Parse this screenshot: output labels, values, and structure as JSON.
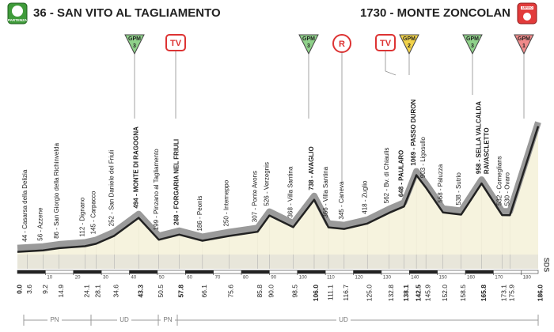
{
  "chart_data": {
    "type": "area",
    "x": [
      {
        "value": 0,
        "label": "0.0"
      },
      3.6,
      9.2,
      14.9,
      24.1,
      28.1,
      34.6,
      43.3,
      50.5,
      57.8,
      66.1,
      75.6,
      85.8,
      {
        "value": 90,
        "label": "90.0"
      },
      98.5,
      {
        "value": 106,
        "label": "106.0"
      },
      111.1,
      116.7,
      {
        "value": 125,
        "label": "125.0"
      },
      132.8,
      138.1,
      142.5,
      145.9,
      {
        "value": 152,
        "label": "152.0"
      },
      158.5,
      165.8,
      173.1,
      175.9,
      {
        "value": 186,
        "label": "186.0"
      }
    ],
    "values": [
      36,
      44,
      56,
      86,
      112,
      145,
      252,
      494,
      199,
      268,
      186,
      250,
      307,
      526,
      368,
      738,
      366,
      345,
      418,
      562,
      648,
      1069,
      903,
      568,
      538,
      958,
      532,
      530,
      1730
    ],
    "value_labels": [
      "36 - SAN VITO AL TAGLIAMENTO",
      "44 - Casarsa della Delizia",
      "56 - Azzene",
      "86 - San Giorgio della Richinvelda",
      "112 - Dignano",
      "145 - Carpacco",
      "252 - San Daniele del Friuli",
      "494 - MONTE DI RAGOGNA",
      "199 - Pinzano al Tagliamento",
      "268 - FORGARIA NEL FRIULI",
      "186 - Peonis",
      "250 - Interneppo",
      "307 - Ponte Avons",
      "526 - Verzegnis",
      "368 - Villa Santina",
      "738 - AVAGLIO",
      "366 - Villa Santina",
      "345 - Caneva",
      "418 - Zuglio",
      "562 - Bv. di Chiaulis",
      "648 - PAULARO",
      "1069 - PASSO DURON",
      "903 - Ligosullo",
      "568 - Paluzza",
      "538 - Sutrio",
      [
        "958 - SELLA VALCALDA",
        "RAVASCLETTO"
      ],
      "532 - Comeglians",
      "530 - Ovaro",
      "1730 - MONTE ZONCOLAN"
    ],
    "xlim": [
      0,
      186
    ],
    "ylim": [
      0,
      1800
    ],
    "xticks": [
      10,
      20,
      30,
      40,
      50,
      60,
      70,
      80,
      90,
      100,
      110,
      120,
      130,
      140,
      150,
      160,
      170,
      180
    ],
    "color": "#f4f1d8"
  },
  "markers": [
    {
      "label": "GPM",
      "category": "3"
    },
    {
      "label": "TV"
    },
    {
      "label": "GPM",
      "category": "3"
    },
    {
      "label": "R"
    },
    {
      "label": "TV"
    },
    {
      "label": "GPM",
      "category": "2"
    },
    {
      "label": "GPM",
      "category": "3"
    },
    {
      "label": "GPM",
      "category": "1"
    }
  ],
  "start_icon": "PARTENZA",
  "finish_icon": "ARRIVO",
  "logo": "SDS",
  "provinces": [
    "PN",
    "UD",
    "PN",
    "UD"
  ]
}
